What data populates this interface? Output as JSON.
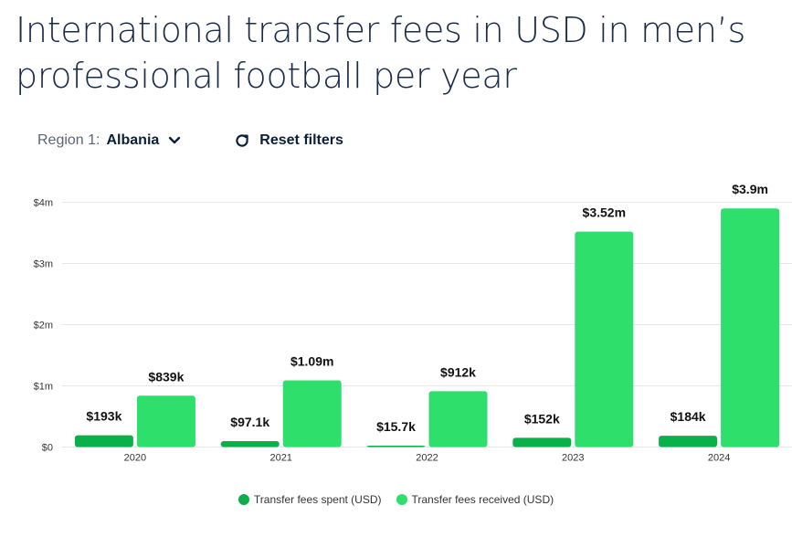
{
  "title": "International transfer fees in USD in men’s professional football per year",
  "filters": {
    "region_label": "Region 1:",
    "region_value": "Albania",
    "reset_label": "Reset filters"
  },
  "colors": {
    "spent": "#0cb04a",
    "received": "#2ee06b",
    "grid": "#e6e6e6",
    "axis_text": "#333333"
  },
  "chart_data": {
    "type": "bar",
    "categories": [
      "2020",
      "2021",
      "2022",
      "2023",
      "2024"
    ],
    "series": [
      {
        "name": "Transfer fees spent (USD)",
        "values": [
          193000,
          97100,
          15700,
          152000,
          184000
        ],
        "labels": [
          "$193k",
          "$97.1k",
          "$15.7k",
          "$152k",
          "$184k"
        ]
      },
      {
        "name": "Transfer fees received (USD)",
        "values": [
          839000,
          1090000,
          912000,
          3520000,
          3900000
        ],
        "labels": [
          "$839k",
          "$1.09m",
          "$912k",
          "$3.52m",
          "$3.9m"
        ]
      }
    ],
    "yticks": [
      0,
      1000000,
      2000000,
      3000000,
      4000000
    ],
    "ytick_labels": [
      "$0",
      "$1m",
      "$2m",
      "$3m",
      "$4m"
    ],
    "ylim": [
      0,
      4000000
    ],
    "grid": true,
    "legend_position": "bottom"
  }
}
